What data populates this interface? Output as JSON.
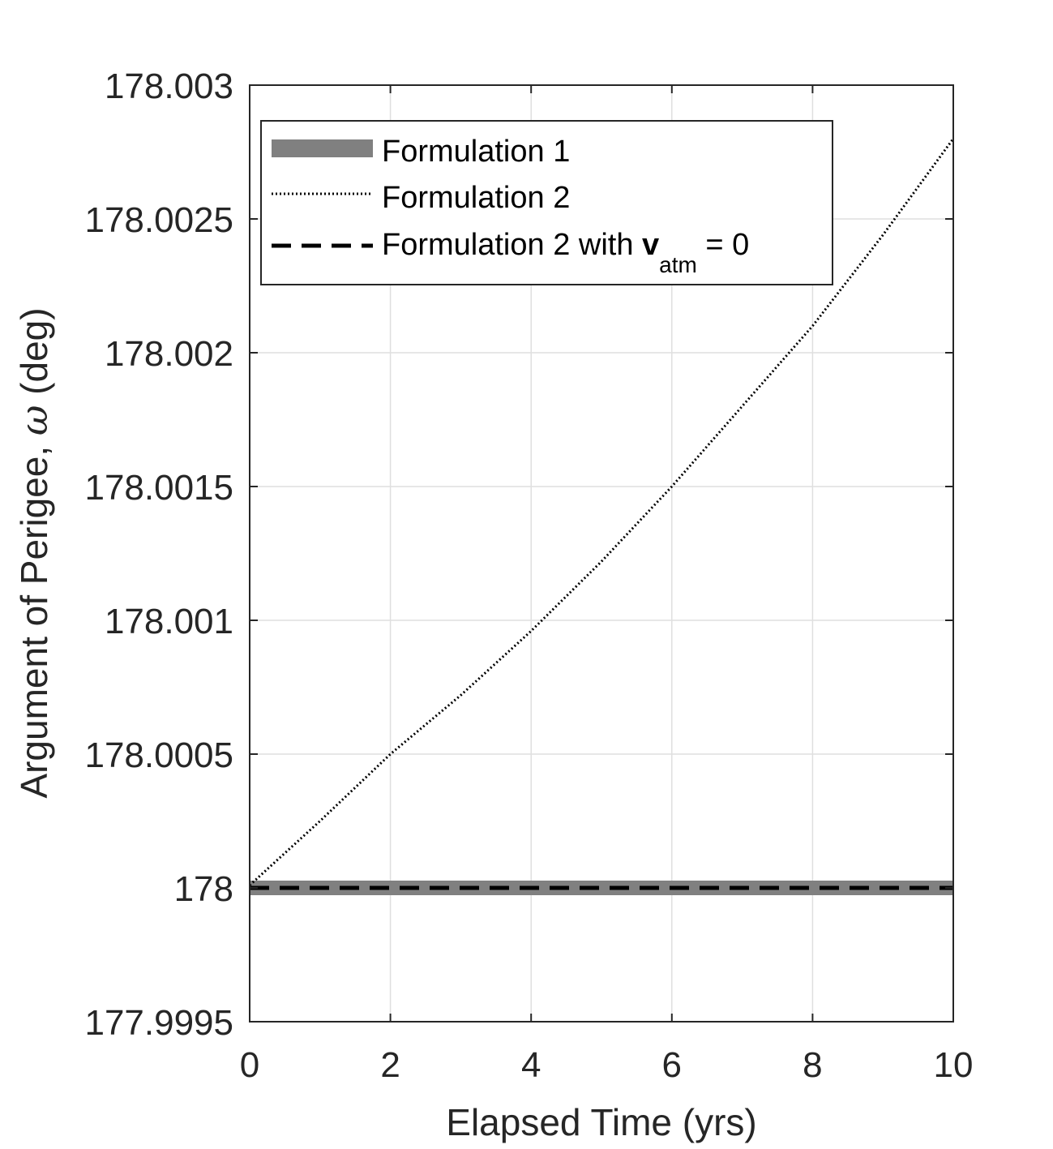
{
  "chart_data": {
    "type": "line",
    "title": "",
    "xlabel": "Elapsed Time (yrs)",
    "ylabel_text": "Argument of Perigee, ",
    "ylabel_symbol": "ω",
    "ylabel_unit": " (deg)",
    "xlim": [
      0,
      10
    ],
    "ylim": [
      177.9995,
      178.003
    ],
    "x_ticks": [
      0,
      2,
      4,
      6,
      8,
      10
    ],
    "x_tick_labels": [
      "0",
      "2",
      "4",
      "6",
      "8",
      "10"
    ],
    "y_ticks": [
      177.9995,
      178,
      178.0005,
      178.001,
      178.0015,
      178.002,
      178.0025,
      178.003
    ],
    "y_tick_labels": [
      "177.9995",
      "178",
      "178.0005",
      "178.001",
      "178.0015",
      "178.002",
      "178.0025",
      "178.003"
    ],
    "grid": true,
    "legend_position": "top-left",
    "legend": {
      "formulation1": "Formulation 1",
      "formulation2": "Formulation 2",
      "formulation2_vatm_prefix": "Formulation 2 with ",
      "formulation2_vatm_symbol": "v",
      "formulation2_vatm_subscript": "atm",
      "formulation2_vatm_suffix": " = 0"
    },
    "series": [
      {
        "name": "Formulation 1",
        "style": "solid-thick",
        "color": "#808080",
        "x": [
          0,
          2,
          4,
          6,
          8,
          10
        ],
        "y": [
          178,
          178,
          178,
          178,
          178,
          178
        ]
      },
      {
        "name": "Formulation 2",
        "style": "dotted",
        "color": "#000000",
        "x": [
          0,
          1,
          2,
          3,
          4,
          5,
          6,
          7,
          8,
          9,
          10
        ],
        "y": [
          178.00001,
          178.00025,
          178.0005,
          178.00072,
          178.00096,
          178.00122,
          178.0015,
          178.0018,
          178.0021,
          178.00244,
          178.0028
        ]
      },
      {
        "name": "Formulation 2 with v_atm = 0",
        "style": "dashed",
        "color": "#000000",
        "x": [
          0,
          2,
          4,
          6,
          8,
          10
        ],
        "y": [
          178,
          178,
          178,
          178,
          178,
          178
        ]
      }
    ]
  }
}
